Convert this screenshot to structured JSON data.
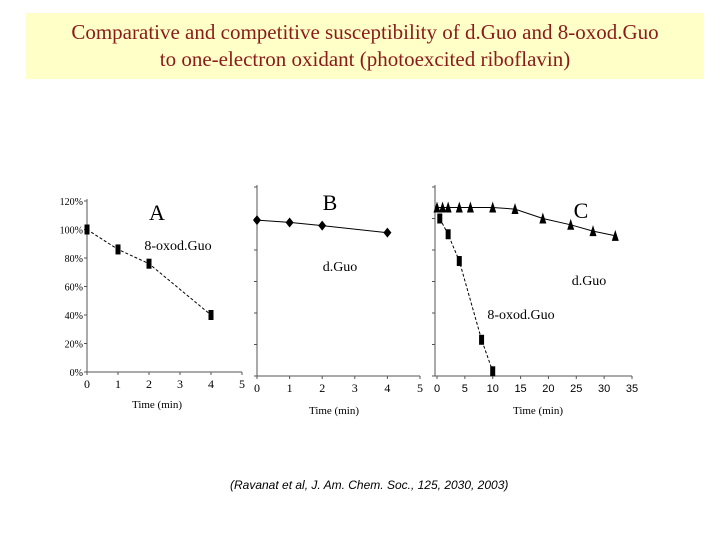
{
  "title": {
    "line1": "Comparative and competitive susceptibility of d.Guo and 8-oxod.Guo",
    "line2": "to one-electron oxidant (photoexcited riboflavin)"
  },
  "citation": "(Ravanat et al, J. Am. Chem. Soc., 125, 2030, 2003)",
  "colors": {
    "title_bg": "#ffffc8",
    "title_text": "#8b1a1a",
    "ink": "#000000"
  },
  "chart_data": [
    {
      "type": "scatter",
      "panel_label": "A",
      "xlabel": "Time (min)",
      "ylabel": "",
      "x_ticks": [
        "0",
        "1",
        "2",
        "3",
        "4",
        "5"
      ],
      "y_ticks": [
        "0%",
        "20%",
        "40%",
        "60%",
        "80%",
        "100%",
        "120%"
      ],
      "xlim": [
        0,
        5
      ],
      "ylim": [
        0,
        120
      ],
      "series": [
        {
          "name": "8-oxod.Guo",
          "marker": "square",
          "line": "dashed",
          "x": [
            0,
            1,
            2,
            4
          ],
          "y": [
            100,
            86,
            76,
            40
          ]
        }
      ]
    },
    {
      "type": "line",
      "panel_label": "B",
      "xlabel": "Time (min)",
      "x_ticks": [
        "0",
        "1",
        "2",
        "3",
        "4",
        "5"
      ],
      "xlim": [
        0,
        5
      ],
      "ylim": [
        0,
        120
      ],
      "series": [
        {
          "name": "d.Guo",
          "marker": "diamond",
          "line": "solid",
          "x": [
            0,
            1,
            2,
            4
          ],
          "y": [
            99,
            97.5,
            95.5,
            91
          ]
        }
      ]
    },
    {
      "type": "line",
      "panel_label": "C",
      "xlabel": "Time (min)",
      "x_ticks": [
        "0",
        "5",
        "10",
        "15",
        "20",
        "25",
        "30",
        "35"
      ],
      "xlim": [
        0,
        35
      ],
      "ylim": [
        0,
        120
      ],
      "series": [
        {
          "name": "d.Guo",
          "marker": "triangle",
          "line": "solid",
          "x": [
            0,
            1,
            2,
            4,
            6,
            10,
            14,
            19,
            24,
            28,
            32
          ],
          "y": [
            107,
            107,
            107,
            107,
            107,
            107,
            106,
            100,
            96,
            92,
            89
          ]
        },
        {
          "name": "8-oxod.Guo",
          "marker": "square",
          "line": "dashed",
          "x": [
            0.5,
            2,
            4,
            8,
            10
          ],
          "y": [
            100,
            90,
            73,
            23,
            3
          ]
        }
      ]
    }
  ]
}
